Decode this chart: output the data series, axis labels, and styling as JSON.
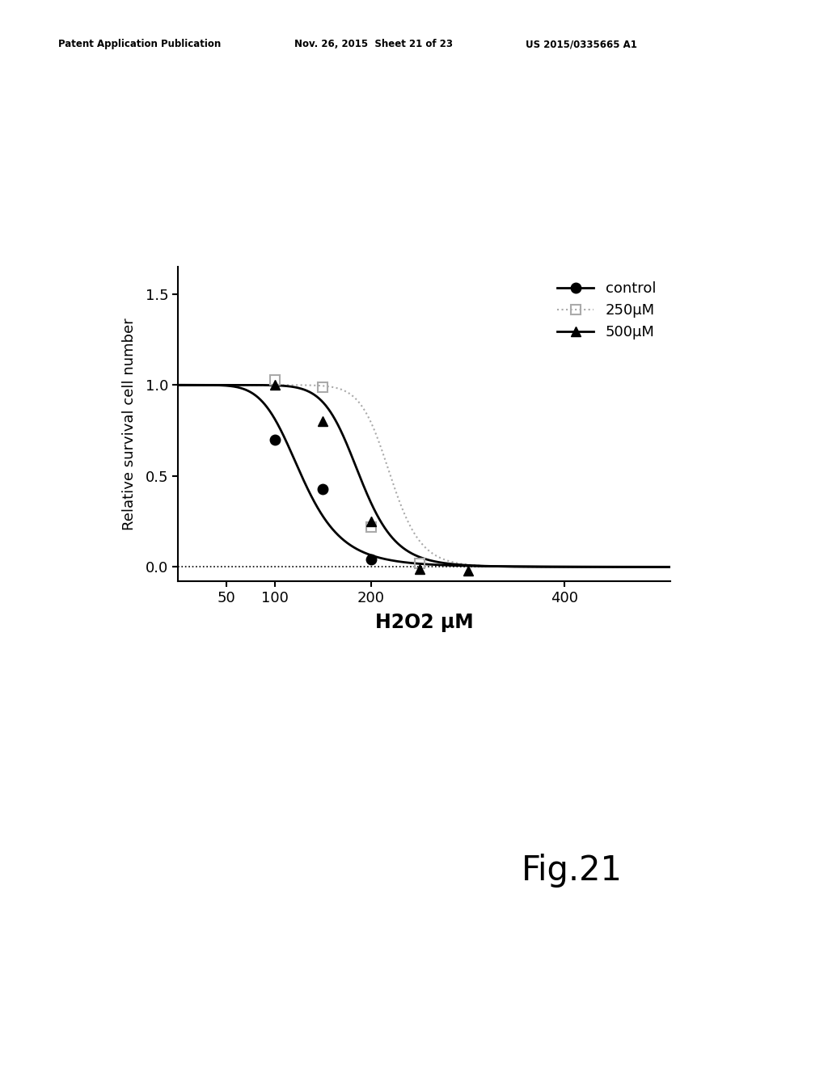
{
  "title_header_left": "Patent Application Publication",
  "title_header_mid": "Nov. 26, 2015  Sheet 21 of 23",
  "title_header_right": "US 2015/0335665 A1",
  "fig_label": "Fig.21",
  "xlabel": "H2O2 μM",
  "ylabel": "Relative survival cell number",
  "xlim": [
    0,
    510
  ],
  "ylim": [
    -0.08,
    1.65
  ],
  "xticks": [
    50,
    100,
    200,
    400
  ],
  "yticks": [
    0.0,
    0.5,
    1.0,
    1.5
  ],
  "control": {
    "label": "control",
    "color": "#000000",
    "line_style": "-",
    "marker": "o",
    "ec50": 128,
    "hill": 6.0,
    "data_x": [
      100,
      150,
      200
    ],
    "data_y": [
      0.7,
      0.43,
      0.04
    ]
  },
  "um250": {
    "label": "250μM",
    "color": "#aaaaaa",
    "line_style": "dotted",
    "marker": "s",
    "ec50": 220,
    "hill": 14,
    "data_x": [
      100,
      150,
      200,
      250
    ],
    "data_y": [
      1.03,
      0.99,
      0.22,
      0.02
    ]
  },
  "um500": {
    "label": "500μM",
    "color": "#000000",
    "line_style": "-",
    "marker": "^",
    "ec50": 188,
    "hill": 10,
    "data_x": [
      100,
      150,
      200,
      250,
      300
    ],
    "data_y": [
      1.0,
      0.8,
      0.25,
      -0.01,
      -0.02
    ]
  },
  "background_color": "#ffffff"
}
